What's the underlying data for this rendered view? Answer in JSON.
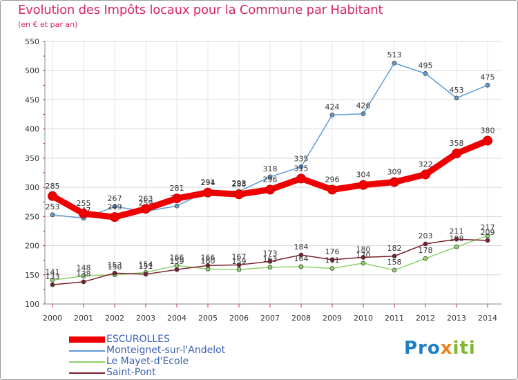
{
  "header": {
    "title": "Evolution des Impôts locaux pour la Commune par Habitant",
    "subtitle": "(en € et par an)"
  },
  "logo": {
    "parts": [
      "Pro",
      "x",
      "iti"
    ]
  },
  "chart_data": {
    "type": "line",
    "title": "Evolution des Impôts locaux pour la Commune par Habitant",
    "subtitle": "(en € et par an)",
    "xlabel": "",
    "ylabel": "",
    "ylim": [
      100,
      550
    ],
    "yticks": [
      100,
      150,
      200,
      250,
      300,
      350,
      400,
      450,
      500,
      550
    ],
    "grid": true,
    "legend_position": "bottom-left",
    "categories": [
      "2000",
      "2001",
      "2002",
      "2003",
      "2004",
      "2005",
      "2006",
      "2007",
      "2008",
      "2009",
      "2010",
      "2011",
      "2012",
      "2013",
      "2014"
    ],
    "series": [
      {
        "name": "Monteignet-sur-l'Andelot",
        "color": "#5d9bd4",
        "values": [
          253,
          247,
          267,
          259,
          268,
          294,
          293,
          318,
          335,
          424,
          426,
          513,
          495,
          453,
          475
        ],
        "labels": [
          253,
          247,
          267,
          259,
          268,
          294,
          293,
          318,
          335,
          424,
          426,
          513,
          495,
          453,
          475
        ]
      },
      {
        "name": "Le Mayet-d'Ecole",
        "color": "#8fd16a",
        "values": [
          141,
          148,
          150,
          154,
          166,
          160,
          159,
          163,
          164,
          161,
          170,
          158,
          178,
          198,
          217
        ],
        "labels": [
          141,
          148,
          150,
          154,
          166,
          160,
          159,
          163,
          164,
          161,
          170,
          158,
          178,
          198,
          217
        ]
      },
      {
        "name": "Saint-Pont",
        "color": "#7a1f2a",
        "values": [
          133,
          138,
          153,
          151,
          159,
          166,
          167,
          173,
          184,
          176,
          180,
          182,
          203,
          211,
          209
        ],
        "labels": [
          133,
          138,
          153,
          151,
          159,
          166,
          167,
          173,
          184,
          176,
          180,
          182,
          203,
          211,
          209
        ]
      },
      {
        "name": "ESCUROLLES",
        "color": "#ee0000",
        "values": [
          285,
          255,
          249,
          263,
          281,
          291,
          288,
          296,
          315,
          296,
          304,
          309,
          322,
          358,
          380
        ],
        "labels": [
          285,
          255,
          249,
          263,
          281,
          291,
          288,
          296,
          315,
          296,
          304,
          309,
          322,
          358,
          380
        ]
      }
    ],
    "legend": [
      "ESCUROLLES",
      "Monteignet-sur-l'Andelot",
      "Le Mayet-d'Ecole",
      "Saint-Pont"
    ]
  }
}
